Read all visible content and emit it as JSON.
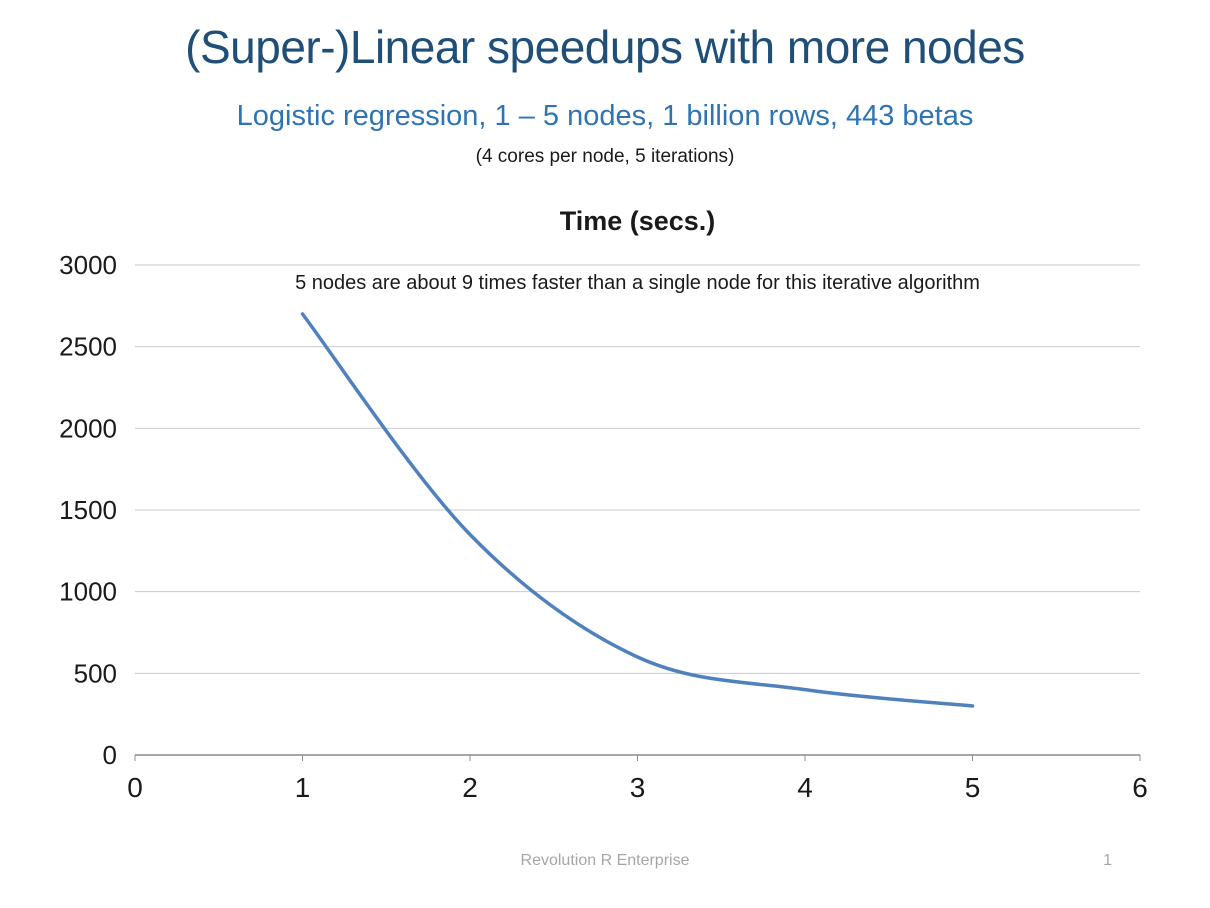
{
  "slide": {
    "title": "(Super-)Linear speedups with more nodes",
    "subtitle": "Logistic regression, 1 – 5 nodes, 1 billion rows, 443 betas",
    "note": "(4 cores per node, 5 iterations)",
    "footer": "Revolution R Enterprise",
    "page_number": "1"
  },
  "colors": {
    "title": "#1F4E79",
    "subtitle": "#2E74B5",
    "line": "#4F81BD",
    "grid": "#C9C9C9",
    "axis": "#8C8C8C",
    "tick_label": "#1a1a1a",
    "footer": "#A6A6A6"
  },
  "chart_data": {
    "type": "line",
    "title": "Time (secs.)",
    "annotation": "5 nodes are about 9 times faster than a single node for this iterative algorithm",
    "x": [
      1,
      2,
      3,
      4,
      5
    ],
    "values": [
      2700,
      1350,
      600,
      400,
      300
    ],
    "series_name": "Time (secs.)",
    "xlabel": "",
    "ylabel": "",
    "xlim": [
      0,
      6
    ],
    "ylim": [
      0,
      3000
    ],
    "x_ticks": [
      0,
      1,
      2,
      3,
      4,
      5,
      6
    ],
    "y_ticks": [
      0,
      500,
      1000,
      1500,
      2000,
      2500,
      3000
    ],
    "grid": "horizontal",
    "legend": "none"
  }
}
